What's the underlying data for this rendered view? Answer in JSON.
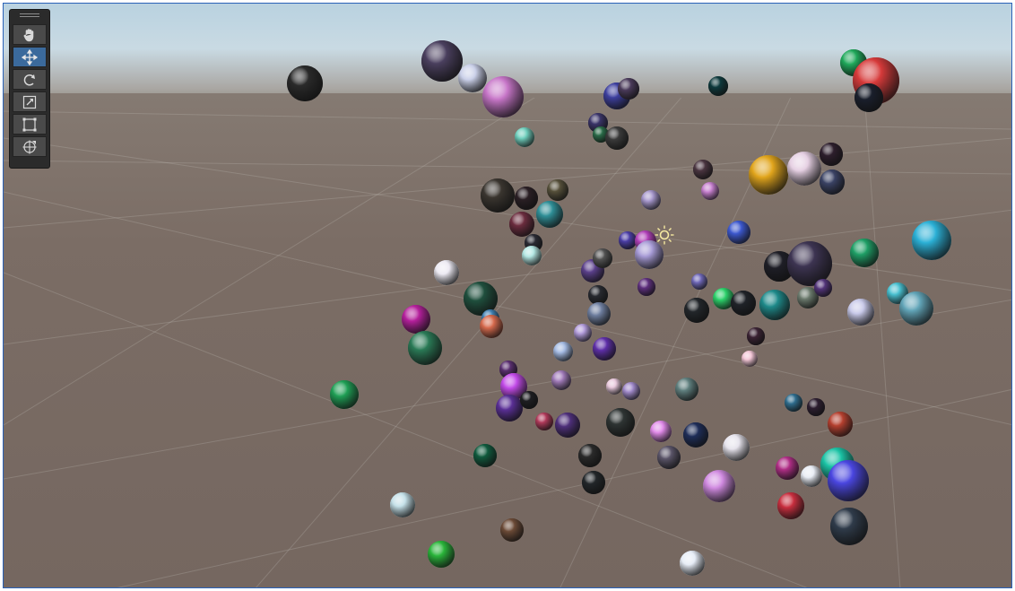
{
  "window": {
    "border_color": "#2a62b8"
  },
  "toolbar": {
    "tools": [
      {
        "icon": "hand-icon",
        "active": false
      },
      {
        "icon": "move-icon",
        "active": true
      },
      {
        "icon": "rotate-icon",
        "active": false
      },
      {
        "icon": "scale-icon",
        "active": false
      },
      {
        "icon": "rect-icon",
        "active": false
      },
      {
        "icon": "transform-icon",
        "active": false
      }
    ]
  },
  "scene": {
    "sky_color": "#c4d8e3",
    "ground_color": "#7b6d65",
    "directional_light_icon": "sun-icon",
    "sphere_colors": [
      "#2a2a2a",
      "#4a3f5e",
      "#c9cfe8",
      "#c776c8",
      "#3d3f9e",
      "#4a3a5a",
      "#0e3a3d",
      "#1fa85a",
      "#d63a3a",
      "#1a1f2c",
      "#6fcfbd",
      "#3a3468",
      "#2a6b48",
      "#3a3a3a",
      "#4a3540",
      "#e1a51c",
      "#e5cfe2",
      "#2d1e2c",
      "#3a4264",
      "#3a352f",
      "#a596cb",
      "#2a1f24",
      "#56503a",
      "#c57fcd",
      "#2f8f97",
      "#6b2c3e",
      "#2a2a33",
      "#b3e6e2",
      "#4b3ea6",
      "#b040b8",
      "#a79bd6",
      "#3c58ce",
      "#1f9f66",
      "#2bb0d6",
      "#1e1e26",
      "#3d3452",
      "#ece9f2",
      "#5a3f8a",
      "#525252",
      "#5e2f7e",
      "#6f68b8",
      "#2cd16a",
      "#1f2228",
      "#1e8a8a",
      "#6b7a6d",
      "#53357a",
      "#48c0d0",
      "#62a5b8",
      "#c7c8e8",
      "#1f4f3d",
      "#3f7fb0",
      "#d66a4d",
      "#b5209c",
      "#2a7a56",
      "#282a30",
      "#6f7fa0",
      "#22262a",
      "#a2b8e0",
      "#b09ad8",
      "#5e2fa8",
      "#3a2233",
      "#f2c5d5",
      "#1f9f55",
      "#5a2f70",
      "#c24ae8",
      "#5a2f96",
      "#1e1e22",
      "#a07ab8",
      "#e8c8dc",
      "#9f88c8",
      "#5f7f7e",
      "#2f6d8e",
      "#2d1e30",
      "#b5402f",
      "#b03a5a",
      "#4e2f7a",
      "#2e3433",
      "#e08ae8",
      "#1e2d58",
      "#e6e3ec",
      "#0f5a3d",
      "#2a2a2a",
      "#5a5468",
      "#1bc3a5",
      "#b02e86",
      "#e8ecf4",
      "#4a46e0",
      "#222629",
      "#d08ae0",
      "#c82e3e",
      "#c4e0e8",
      "#6b4a36",
      "#2ab53a",
      "#e6ecf6",
      "#2f3b4a"
    ]
  }
}
